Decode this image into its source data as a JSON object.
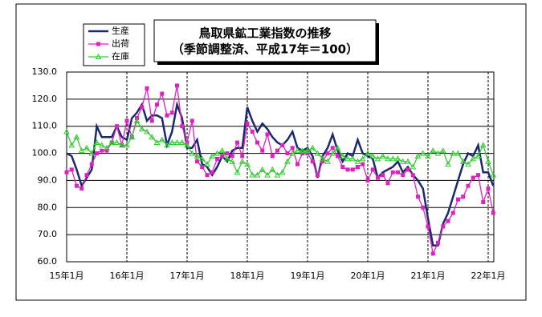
{
  "chart_data": {
    "type": "line",
    "title": "鳥取県鉱工業指数の推移",
    "subtitle": "（季節調整済、平成17年＝100）",
    "categories": [
      "15年1月",
      null,
      null,
      null,
      null,
      null,
      null,
      null,
      null,
      null,
      null,
      null,
      "16年1月",
      null,
      null,
      null,
      null,
      null,
      null,
      null,
      null,
      null,
      null,
      null,
      "17年1月",
      null,
      null,
      null,
      null,
      null,
      null,
      null,
      null,
      null,
      null,
      null,
      "18年1月",
      null,
      null,
      null,
      null,
      null,
      null,
      null,
      null,
      null,
      null,
      null,
      "19年1月",
      null,
      null,
      null,
      null,
      null,
      null,
      null,
      null,
      null,
      null,
      null,
      "20年1月",
      null,
      null,
      null,
      null,
      null,
      null,
      null,
      null,
      null,
      null,
      null,
      "21年1月",
      null,
      null,
      null,
      null,
      null,
      null,
      null,
      null,
      null,
      null,
      null,
      "22年1月",
      null
    ],
    "series": [
      {
        "name": "生産",
        "color": "#1a2a6c",
        "marker": "none",
        "values": [
          100,
          99,
          94,
          88,
          91,
          94,
          110,
          106,
          106,
          106,
          110,
          106,
          105,
          113,
          115,
          118,
          112,
          114,
          114,
          113,
          103,
          108,
          118,
          113,
          102,
          102,
          105,
          96,
          95,
          92,
          95,
          99,
          97,
          101,
          102,
          102,
          117,
          112,
          108,
          111,
          109,
          106,
          104,
          103,
          105,
          108,
          102,
          101,
          102,
          99,
          91,
          99,
          102,
          107,
          101,
          97,
          100,
          99,
          105,
          100,
          99,
          98,
          91,
          93,
          94,
          95,
          97,
          93,
          95,
          92,
          90,
          87,
          76,
          66,
          66,
          74,
          78,
          84,
          90,
          96,
          100,
          99,
          103,
          93,
          93,
          88
        ]
      },
      {
        "name": "出荷",
        "color": "#e020c0",
        "marker": "square",
        "values": [
          93,
          94,
          88,
          87,
          92,
          96,
          100,
          101,
          101,
          104,
          110,
          103,
          112,
          106,
          113,
          117,
          124,
          112,
          118,
          122,
          114,
          115,
          125,
          110,
          104,
          112,
          97,
          95,
          92,
          93,
          98,
          99,
          100,
          99,
          104,
          99,
          111,
          108,
          104,
          101,
          107,
          99,
          101,
          103,
          100,
          102,
          96,
          100,
          100,
          97,
          92,
          97,
          100,
          102,
          99,
          95,
          94,
          94,
          95,
          96,
          90,
          94,
          91,
          92,
          89,
          93,
          93,
          92,
          94,
          92,
          84,
          80,
          73,
          63,
          67,
          73,
          75,
          78,
          83,
          84,
          88,
          91,
          92,
          82,
          87,
          78
        ]
      },
      {
        "name": "在庫",
        "color": "#33cc33",
        "marker": "triangle",
        "values": [
          108,
          103,
          106,
          101,
          102,
          100,
          104,
          103,
          102,
          104,
          104,
          103,
          103,
          106,
          112,
          109,
          108,
          106,
          104,
          105,
          103,
          104,
          104,
          104,
          103,
          100,
          99,
          98,
          96,
          99,
          100,
          101,
          98,
          97,
          93,
          97,
          96,
          92,
          92,
          94,
          92,
          94,
          92,
          93,
          97,
          100,
          101,
          101,
          101,
          102,
          100,
          98,
          97,
          100,
          102,
          99,
          98,
          98,
          97,
          98,
          100,
          99,
          98,
          99,
          98,
          98,
          98,
          97,
          97,
          95,
          99,
          100,
          99,
          101,
          100,
          101,
          96,
          100,
          100,
          97,
          96,
          98,
          99,
          103,
          97,
          92
        ]
      }
    ],
    "ylim": [
      60,
      130
    ],
    "yticks": [
      {
        "value": 60,
        "label": "60.0"
      },
      {
        "value": 70,
        "label": "70.0"
      },
      {
        "value": 80,
        "label": "80.0"
      },
      {
        "value": 90,
        "label": "90.0"
      },
      {
        "value": 100,
        "label": "100.0"
      },
      {
        "value": 110,
        "label": "110.0"
      },
      {
        "value": 120,
        "label": "120.0"
      },
      {
        "value": 130,
        "label": "130.0"
      }
    ],
    "grid": true
  }
}
